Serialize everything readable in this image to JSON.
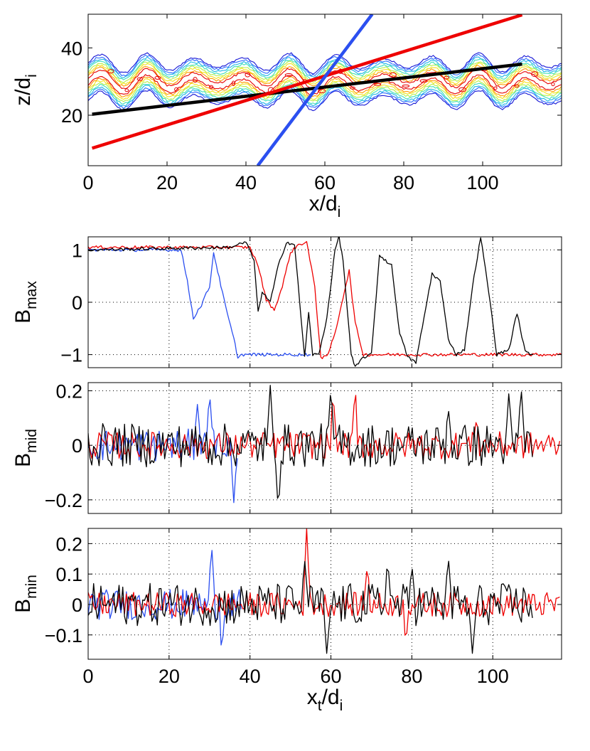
{
  "chart_data": [
    {
      "type": "line",
      "panel": "contour",
      "xlabel": {
        "main": "x/d",
        "sub": "i"
      },
      "ylabel": {
        "main": "z/d",
        "sub": "i"
      },
      "xlim": [
        0,
        120
      ],
      "ylim": [
        5,
        50
      ],
      "xticks": [
        0,
        20,
        40,
        60,
        80,
        100
      ],
      "yticks": [
        20,
        40
      ],
      "grid": false,
      "contour": {
        "description": "current sheet contours along z≈30 with wave-like undulation",
        "center_z": 30,
        "amplitude": 3,
        "wavelength": 12,
        "colors": [
          "#1515d6",
          "#2b6cff",
          "#20b7e8",
          "#3fe0b8",
          "#b6f04a",
          "#f4e41c",
          "#ff9a00",
          "#e60000"
        ]
      },
      "series": [
        {
          "color": "#000000",
          "x": [
            1,
            110
          ],
          "y": [
            20.3,
            35.2
          ]
        },
        {
          "color": "#ee0000",
          "x": [
            1,
            110
          ],
          "y": [
            10.2,
            49.8
          ]
        },
        {
          "color": "#2b4ff0",
          "x": [
            43,
            72
          ],
          "y": [
            5,
            50
          ]
        }
      ]
    },
    {
      "type": "line",
      "panel": "B_max",
      "ylabel": {
        "main": "B",
        "sub": "max"
      },
      "xlim": [
        0,
        117
      ],
      "ylim": [
        -1.25,
        1.25
      ],
      "yticks": [
        1,
        0,
        -1
      ],
      "xticks": [
        0,
        20,
        40,
        60,
        80,
        100
      ],
      "grid": true,
      "series": [
        {
          "color": "#2b4ff0",
          "x": [
            0,
            23,
            24.5,
            26,
            28,
            30,
            31,
            32,
            34,
            36,
            37,
            38,
            40,
            45,
            55
          ],
          "y": [
            1.0,
            1.0,
            0.4,
            -0.3,
            -0.05,
            0.3,
            0.95,
            0.6,
            -0.1,
            -0.7,
            -1.05,
            -1.0,
            -1.0,
            -1.0,
            -1.0
          ]
        },
        {
          "color": "#ee0000",
          "x": [
            0,
            40,
            42,
            44,
            46,
            48,
            50,
            52,
            54,
            56,
            57.5,
            59,
            61,
            63,
            64.5,
            66,
            68,
            75,
            90,
            100,
            117
          ],
          "y": [
            1.05,
            1.05,
            0.7,
            0.05,
            -0.15,
            0.3,
            0.95,
            1.1,
            1.15,
            0.3,
            -1.05,
            -1.05,
            -0.6,
            0.1,
            0.6,
            -0.4,
            -1.0,
            -1.0,
            -1.0,
            -1.0,
            -1.0
          ]
        },
        {
          "color": "#000000",
          "x": [
            0,
            35,
            37,
            39,
            41,
            42,
            43,
            45,
            47,
            49,
            51,
            53.5,
            54.5,
            55.5,
            57,
            59,
            61,
            62,
            63,
            65,
            66,
            68,
            70,
            72,
            75,
            77,
            79,
            81,
            83,
            85,
            87,
            89,
            91,
            93,
            95,
            97,
            99,
            101,
            104,
            106,
            108,
            110
          ],
          "y": [
            1.0,
            1.05,
            1.1,
            1.15,
            0.8,
            -0.2,
            0.2,
            0.0,
            0.7,
            1.15,
            1.1,
            -1.05,
            -0.2,
            -1.0,
            -1.0,
            -0.3,
            1.0,
            1.25,
            0.8,
            -1.0,
            -1.25,
            -1.05,
            -1.0,
            0.9,
            0.7,
            -0.6,
            -1.05,
            -1.15,
            -0.3,
            0.55,
            0.4,
            -0.7,
            -1.0,
            -0.9,
            0.3,
            1.25,
            0.2,
            -1.0,
            -0.9,
            -0.2,
            -0.95,
            -1.0
          ]
        }
      ]
    },
    {
      "type": "line",
      "panel": "B_mid",
      "ylabel": {
        "main": "B",
        "sub": "mid"
      },
      "xlim": [
        0,
        117
      ],
      "ylim": [
        -0.25,
        0.23
      ],
      "yticks": [
        0.2,
        0,
        -0.2
      ],
      "xticks": [
        0,
        20,
        40,
        60,
        80,
        100
      ],
      "grid": true,
      "series": [
        {
          "color": "#2b4ff0",
          "x_range": [
            0,
            37
          ],
          "noise": 0.06,
          "spikes": [
            [
              30,
              0.2
            ],
            [
              36,
              -0.21
            ],
            [
              27,
              0.15
            ]
          ]
        },
        {
          "color": "#ee0000",
          "x_range": [
            0,
            117
          ],
          "noise": 0.05,
          "spikes": [
            [
              60.5,
              0.2
            ],
            [
              66,
              0.22
            ],
            [
              96,
              0.1
            ]
          ]
        },
        {
          "color": "#000000",
          "x_range": [
            0,
            110
          ],
          "noise": 0.08,
          "spikes": [
            [
              45,
              0.22
            ],
            [
              47,
              -0.25
            ],
            [
              60,
              0.22
            ],
            [
              89,
              0.14
            ],
            [
              104,
              0.2
            ],
            [
              107,
              0.22
            ]
          ]
        }
      ]
    },
    {
      "type": "line",
      "panel": "B_min",
      "ylabel": {
        "main": "B",
        "sub": "min"
      },
      "xlabel": {
        "main": "x",
        "sub": "t",
        "main2": "/d",
        "sub2": "i"
      },
      "xlim": [
        0,
        117
      ],
      "ylim": [
        -0.18,
        0.25
      ],
      "yticks": [
        0.2,
        0.1,
        0,
        -0.1
      ],
      "xticks": [
        0,
        20,
        40,
        60,
        80,
        100
      ],
      "grid": true,
      "series": [
        {
          "color": "#2b4ff0",
          "x_range": [
            0,
            38
          ],
          "noise": 0.05,
          "spikes": [
            [
              30.5,
              0.2
            ],
            [
              33,
              -0.16
            ]
          ]
        },
        {
          "color": "#ee0000",
          "x_range": [
            0,
            117
          ],
          "noise": 0.04,
          "spikes": [
            [
              54,
              0.25
            ],
            [
              69,
              0.13
            ],
            [
              78.5,
              -0.13
            ]
          ]
        },
        {
          "color": "#000000",
          "x_range": [
            0,
            110
          ],
          "noise": 0.07,
          "spikes": [
            [
              53.5,
              0.15
            ],
            [
              59,
              -0.17
            ],
            [
              74,
              0.15
            ],
            [
              80,
              0.13
            ],
            [
              89,
              0.16
            ],
            [
              95,
              -0.17
            ]
          ]
        }
      ]
    }
  ]
}
